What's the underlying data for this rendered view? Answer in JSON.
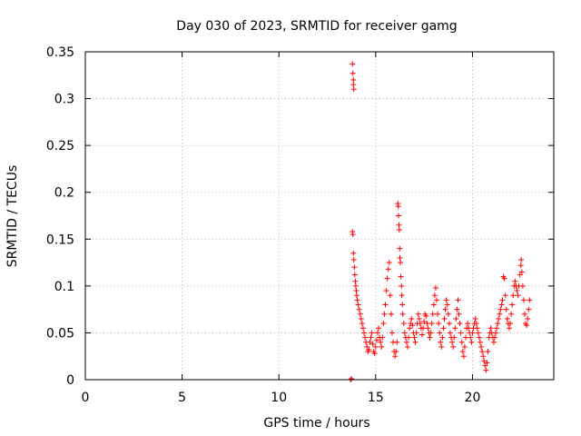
{
  "chart_data": {
    "type": "scatter",
    "title": "Day 030 of 2023, SRMTID for receiver gamg",
    "xlabel": "GPS time / hours",
    "ylabel": "SRMTID / TECUs",
    "xlim": [
      0,
      24.2
    ],
    "ylim": [
      0,
      0.35
    ],
    "x_ticks": [
      0,
      5,
      10,
      15,
      20
    ],
    "x_tick_labels": [
      "0",
      "5",
      "10",
      "15",
      "20"
    ],
    "y_ticks": [
      0,
      0.05,
      0.1,
      0.15,
      0.2,
      0.25,
      0.3,
      0.35
    ],
    "y_tick_labels": [
      "0",
      "0.05",
      "0.1",
      "0.15",
      "0.2",
      "0.25",
      "0.3",
      "0.35"
    ],
    "grid": true,
    "marker": "+",
    "series": [
      {
        "name": "SRMTID",
        "color": "#ff0000",
        "points": [
          [
            13.7,
            0.0
          ],
          [
            13.75,
            0.001
          ],
          [
            13.8,
            0.337
          ],
          [
            13.82,
            0.327
          ],
          [
            13.85,
            0.32
          ],
          [
            13.85,
            0.315
          ],
          [
            13.87,
            0.31
          ],
          [
            13.8,
            0.158
          ],
          [
            13.82,
            0.155
          ],
          [
            13.85,
            0.135
          ],
          [
            13.87,
            0.128
          ],
          [
            13.9,
            0.12
          ],
          [
            13.92,
            0.112
          ],
          [
            13.95,
            0.105
          ],
          [
            13.97,
            0.1
          ],
          [
            14.0,
            0.095
          ],
          [
            14.02,
            0.09
          ],
          [
            14.05,
            0.085
          ],
          [
            14.1,
            0.08
          ],
          [
            14.15,
            0.075
          ],
          [
            14.2,
            0.07
          ],
          [
            14.25,
            0.065
          ],
          [
            14.3,
            0.06
          ],
          [
            14.35,
            0.055
          ],
          [
            14.4,
            0.05
          ],
          [
            14.45,
            0.045
          ],
          [
            14.5,
            0.04
          ],
          [
            14.55,
            0.035
          ],
          [
            14.6,
            0.03
          ],
          [
            14.65,
            0.032
          ],
          [
            14.7,
            0.04
          ],
          [
            14.75,
            0.045
          ],
          [
            14.8,
            0.05
          ],
          [
            14.85,
            0.038
          ],
          [
            14.9,
            0.03
          ],
          [
            14.95,
            0.028
          ],
          [
            15.0,
            0.035
          ],
          [
            15.05,
            0.042
          ],
          [
            15.1,
            0.05
          ],
          [
            15.15,
            0.055
          ],
          [
            15.2,
            0.045
          ],
          [
            15.25,
            0.04
          ],
          [
            15.3,
            0.035
          ],
          [
            15.35,
            0.045
          ],
          [
            15.4,
            0.06
          ],
          [
            15.45,
            0.07
          ],
          [
            15.5,
            0.08
          ],
          [
            15.55,
            0.095
          ],
          [
            15.6,
            0.108
          ],
          [
            15.65,
            0.118
          ],
          [
            15.7,
            0.125
          ],
          [
            15.75,
            0.09
          ],
          [
            15.8,
            0.07
          ],
          [
            15.85,
            0.05
          ],
          [
            15.9,
            0.04
          ],
          [
            15.95,
            0.03
          ],
          [
            16.0,
            0.025
          ],
          [
            16.05,
            0.03
          ],
          [
            16.1,
            0.04
          ],
          [
            16.15,
            0.188
          ],
          [
            16.17,
            0.185
          ],
          [
            16.18,
            0.175
          ],
          [
            16.2,
            0.165
          ],
          [
            16.22,
            0.16
          ],
          [
            16.24,
            0.14
          ],
          [
            16.25,
            0.13
          ],
          [
            16.28,
            0.125
          ],
          [
            16.3,
            0.11
          ],
          [
            16.33,
            0.1
          ],
          [
            16.35,
            0.09
          ],
          [
            16.38,
            0.08
          ],
          [
            16.4,
            0.07
          ],
          [
            16.45,
            0.06
          ],
          [
            16.5,
            0.05
          ],
          [
            16.55,
            0.045
          ],
          [
            16.6,
            0.04
          ],
          [
            16.65,
            0.035
          ],
          [
            16.7,
            0.045
          ],
          [
            16.75,
            0.055
          ],
          [
            16.8,
            0.06
          ],
          [
            16.85,
            0.065
          ],
          [
            16.9,
            0.058
          ],
          [
            16.95,
            0.05
          ],
          [
            17.0,
            0.045
          ],
          [
            17.05,
            0.04
          ],
          [
            17.1,
            0.05
          ],
          [
            17.15,
            0.06
          ],
          [
            17.2,
            0.07
          ],
          [
            17.25,
            0.065
          ],
          [
            17.3,
            0.06
          ],
          [
            17.35,
            0.055
          ],
          [
            17.4,
            0.048
          ],
          [
            17.45,
            0.055
          ],
          [
            17.5,
            0.062
          ],
          [
            17.55,
            0.07
          ],
          [
            17.6,
            0.068
          ],
          [
            17.65,
            0.06
          ],
          [
            17.7,
            0.055
          ],
          [
            17.75,
            0.05
          ],
          [
            17.8,
            0.045
          ],
          [
            17.85,
            0.05
          ],
          [
            17.9,
            0.06
          ],
          [
            17.95,
            0.07
          ],
          [
            18.0,
            0.08
          ],
          [
            18.05,
            0.09
          ],
          [
            18.1,
            0.098
          ],
          [
            18.15,
            0.085
          ],
          [
            18.2,
            0.07
          ],
          [
            18.25,
            0.06
          ],
          [
            18.3,
            0.05
          ],
          [
            18.35,
            0.04
          ],
          [
            18.4,
            0.035
          ],
          [
            18.45,
            0.045
          ],
          [
            18.5,
            0.055
          ],
          [
            18.55,
            0.065
          ],
          [
            18.6,
            0.075
          ],
          [
            18.65,
            0.085
          ],
          [
            18.7,
            0.08
          ],
          [
            18.75,
            0.07
          ],
          [
            18.8,
            0.06
          ],
          [
            18.85,
            0.05
          ],
          [
            18.9,
            0.045
          ],
          [
            18.95,
            0.04
          ],
          [
            19.0,
            0.035
          ],
          [
            19.05,
            0.045
          ],
          [
            19.1,
            0.055
          ],
          [
            19.15,
            0.065
          ],
          [
            19.2,
            0.075
          ],
          [
            19.25,
            0.085
          ],
          [
            19.3,
            0.07
          ],
          [
            19.35,
            0.06
          ],
          [
            19.4,
            0.05
          ],
          [
            19.45,
            0.04
          ],
          [
            19.5,
            0.03
          ],
          [
            19.55,
            0.025
          ],
          [
            19.6,
            0.035
          ],
          [
            19.65,
            0.045
          ],
          [
            19.7,
            0.055
          ],
          [
            19.75,
            0.06
          ],
          [
            19.8,
            0.055
          ],
          [
            19.85,
            0.05
          ],
          [
            19.9,
            0.045
          ],
          [
            19.95,
            0.04
          ],
          [
            20.0,
            0.05
          ],
          [
            20.05,
            0.055
          ],
          [
            20.1,
            0.06
          ],
          [
            20.15,
            0.065
          ],
          [
            20.2,
            0.06
          ],
          [
            20.25,
            0.055
          ],
          [
            20.3,
            0.05
          ],
          [
            20.35,
            0.045
          ],
          [
            20.4,
            0.04
          ],
          [
            20.45,
            0.035
          ],
          [
            20.5,
            0.03
          ],
          [
            20.55,
            0.025
          ],
          [
            20.6,
            0.02
          ],
          [
            20.65,
            0.015
          ],
          [
            20.7,
            0.01
          ],
          [
            20.75,
            0.018
          ],
          [
            20.8,
            0.03
          ],
          [
            20.85,
            0.045
          ],
          [
            20.9,
            0.05
          ],
          [
            20.95,
            0.055
          ],
          [
            21.0,
            0.05
          ],
          [
            21.05,
            0.045
          ],
          [
            21.1,
            0.04
          ],
          [
            21.15,
            0.045
          ],
          [
            21.2,
            0.05
          ],
          [
            21.25,
            0.055
          ],
          [
            21.3,
            0.06
          ],
          [
            21.35,
            0.065
          ],
          [
            21.4,
            0.07
          ],
          [
            21.45,
            0.075
          ],
          [
            21.5,
            0.08
          ],
          [
            21.55,
            0.085
          ],
          [
            21.6,
            0.11
          ],
          [
            21.65,
            0.108
          ],
          [
            21.7,
            0.09
          ],
          [
            21.75,
            0.075
          ],
          [
            21.8,
            0.065
          ],
          [
            21.85,
            0.06
          ],
          [
            21.9,
            0.055
          ],
          [
            21.95,
            0.06
          ],
          [
            22.0,
            0.07
          ],
          [
            22.05,
            0.08
          ],
          [
            22.1,
            0.09
          ],
          [
            22.15,
            0.1
          ],
          [
            22.2,
            0.105
          ],
          [
            22.25,
            0.1
          ],
          [
            22.3,
            0.095
          ],
          [
            22.35,
            0.09
          ],
          [
            22.4,
            0.1
          ],
          [
            22.45,
            0.112
          ],
          [
            22.5,
            0.122
          ],
          [
            22.52,
            0.128
          ],
          [
            22.55,
            0.115
          ],
          [
            22.6,
            0.1
          ],
          [
            22.65,
            0.085
          ],
          [
            22.7,
            0.07
          ],
          [
            22.75,
            0.06
          ],
          [
            22.8,
            0.058
          ],
          [
            22.85,
            0.065
          ],
          [
            22.9,
            0.075
          ],
          [
            22.95,
            0.085
          ]
        ]
      }
    ]
  }
}
